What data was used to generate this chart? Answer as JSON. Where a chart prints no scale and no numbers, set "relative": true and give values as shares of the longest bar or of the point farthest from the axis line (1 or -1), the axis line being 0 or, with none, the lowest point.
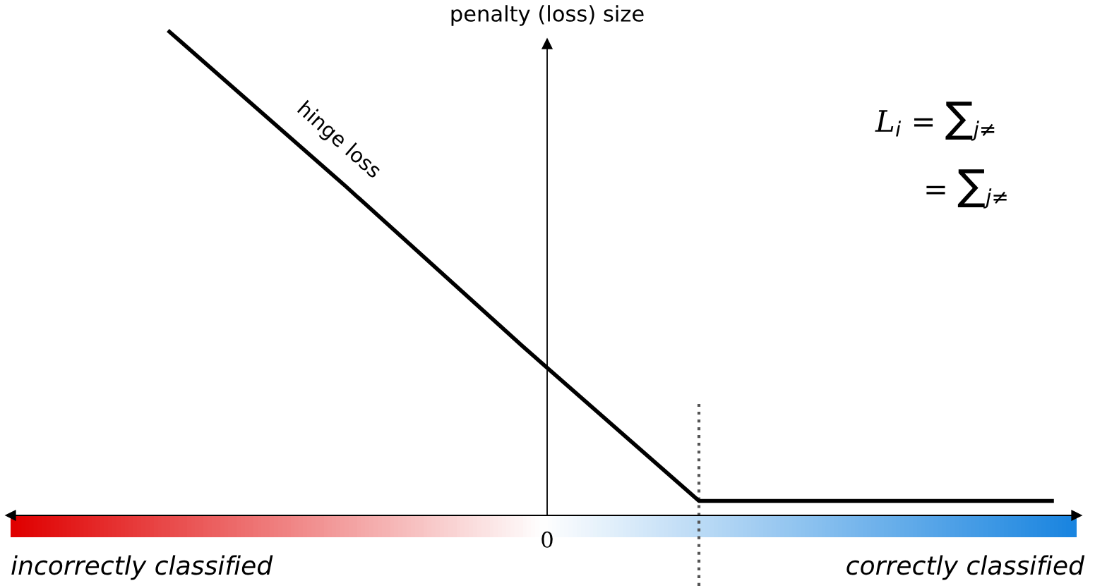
{
  "chart_data": {
    "type": "line",
    "relative": true,
    "ylabel": "penalty (loss) size",
    "categories": [
      null,
      null,
      null,
      null,
      null,
      null
    ],
    "series": [
      {
        "name": "hinge loss",
        "color": "#000000",
        "values": [
          1,
          0.68,
          0.35,
          0.03,
          0.03,
          0.03
        ]
      }
    ],
    "annotations": [
      "0",
      "incorrectly classified",
      "correctly classified",
      "L$_{i}$ = ∑$_{j≠}$",
      "= ∑$_{j≠}$"
    ],
    "grid": false,
    "legend": false,
    "marker": "none",
    "line_style": "solid"
  }
}
